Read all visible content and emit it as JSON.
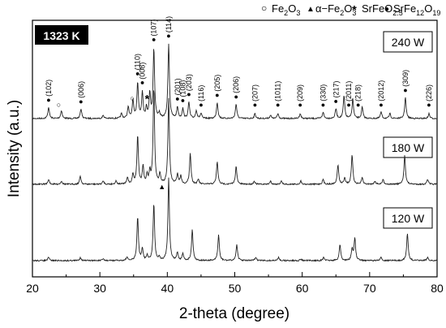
{
  "chart_data": {
    "type": "line",
    "title": "",
    "temperature_label": "1323 K",
    "xlabel": "2-theta (degree)",
    "ylabel": "Intensity (a.u.)",
    "xlim": [
      20,
      80
    ],
    "x_ticks": [
      "20",
      "30",
      "40",
      "50",
      "60",
      "70",
      "80"
    ],
    "grid": false,
    "legend": {
      "placement": "top",
      "items": [
        {
          "marker": "○",
          "symbol_name": "open-circle",
          "base": "Fe",
          "sub1": "2",
          "mid": "O",
          "sub2": "3"
        },
        {
          "marker": "▲",
          "symbol_name": "filled-triangle",
          "base": "α−Fe",
          "sub1": "2",
          "mid": "O",
          "sub2": "3"
        },
        {
          "marker": "*",
          "symbol_name": "asterisk",
          "base": "SrFeO",
          "sub1": "2.5",
          "mid": "",
          "sub2": ""
        },
        {
          "marker": "●",
          "symbol_name": "filled-circle",
          "base": "SrFe",
          "sub1": "12",
          "mid": "O",
          "sub2": "19"
        }
      ]
    },
    "series": [
      {
        "name": "240 W",
        "baseline": 0.0,
        "peaks": [
          [
            22.4,
            0.07
          ],
          [
            24.3,
            0.05
          ],
          [
            27.2,
            0.06
          ],
          [
            30.5,
            0.02
          ],
          [
            33.2,
            0.03
          ],
          [
            34.2,
            0.07
          ],
          [
            34.9,
            0.11
          ],
          [
            35.6,
            0.22
          ],
          [
            36.3,
            0.16
          ],
          [
            36.9,
            0.06
          ],
          [
            37.4,
            0.15
          ],
          [
            38.0,
            0.43
          ],
          [
            38.8,
            0.03
          ],
          [
            40.2,
            0.46
          ],
          [
            41.5,
            0.07
          ],
          [
            42.3,
            0.06
          ],
          [
            43.2,
            0.1
          ],
          [
            44.3,
            0.05
          ],
          [
            45.0,
            0.03
          ],
          [
            47.4,
            0.1
          ],
          [
            50.2,
            0.09
          ],
          [
            53.0,
            0.03
          ],
          [
            55.3,
            0.02
          ],
          [
            56.4,
            0.03
          ],
          [
            59.7,
            0.03
          ],
          [
            63.1,
            0.04
          ],
          [
            65.0,
            0.06
          ],
          [
            66.2,
            0.14
          ],
          [
            67.5,
            0.12
          ],
          [
            68.9,
            0.07
          ],
          [
            71.7,
            0.04
          ],
          [
            73.0,
            0.03
          ],
          [
            75.3,
            0.13
          ],
          [
            78.8,
            0.03
          ]
        ]
      },
      {
        "name": "180 W",
        "baseline": 0.0,
        "peaks": [
          [
            22.4,
            0.03
          ],
          [
            24.3,
            0.02
          ],
          [
            27.1,
            0.05
          ],
          [
            30.5,
            0.02
          ],
          [
            32.4,
            0.02
          ],
          [
            34.1,
            0.04
          ],
          [
            34.9,
            0.06
          ],
          [
            35.6,
            0.3
          ],
          [
            36.4,
            0.11
          ],
          [
            37.0,
            0.05
          ],
          [
            37.4,
            0.07
          ],
          [
            38.0,
            0.59
          ],
          [
            38.9,
            0.06
          ],
          [
            40.2,
            0.53
          ],
          [
            41.5,
            0.06
          ],
          [
            42.0,
            0.05
          ],
          [
            43.4,
            0.19
          ],
          [
            44.6,
            0.03
          ],
          [
            47.4,
            0.14
          ],
          [
            50.2,
            0.11
          ],
          [
            52.9,
            0.02
          ],
          [
            55.3,
            0.02
          ],
          [
            56.9,
            0.02
          ],
          [
            59.8,
            0.02
          ],
          [
            63.1,
            0.03
          ],
          [
            65.3,
            0.12
          ],
          [
            66.3,
            0.04
          ],
          [
            67.4,
            0.18
          ],
          [
            68.9,
            0.04
          ],
          [
            70.8,
            0.02
          ],
          [
            72.0,
            0.03
          ],
          [
            75.2,
            0.18
          ],
          [
            78.6,
            0.03
          ]
        ]
      },
      {
        "name": "120 W",
        "baseline": 0.0,
        "peaks": [
          [
            22.4,
            0.02
          ],
          [
            27.1,
            0.02
          ],
          [
            30.5,
            0.01
          ],
          [
            34.0,
            0.02
          ],
          [
            35.6,
            0.27
          ],
          [
            36.3,
            0.07
          ],
          [
            37.0,
            0.03
          ],
          [
            38.0,
            0.35
          ],
          [
            38.8,
            0.02
          ],
          [
            40.2,
            0.51
          ],
          [
            41.5,
            0.05
          ],
          [
            42.3,
            0.04
          ],
          [
            43.7,
            0.19
          ],
          [
            47.6,
            0.16
          ],
          [
            50.3,
            0.1
          ],
          [
            53.1,
            0.02
          ],
          [
            56.5,
            0.02
          ],
          [
            59.8,
            0.01
          ],
          [
            63.2,
            0.02
          ],
          [
            65.6,
            0.1
          ],
          [
            67.4,
            0.07
          ],
          [
            67.8,
            0.14
          ],
          [
            71.7,
            0.02
          ],
          [
            75.6,
            0.17
          ],
          [
            78.6,
            0.02
          ]
        ]
      }
    ],
    "annotations": [
      {
        "label": "(102)",
        "x": 22.4,
        "marker": "●"
      },
      {
        "label": "(006)",
        "x": 27.2,
        "marker": "●"
      },
      {
        "label": "",
        "x": 23.9,
        "marker": "○"
      },
      {
        "label": "",
        "x": 34.8,
        "marker": "○"
      },
      {
        "label": "(110)",
        "x": 35.6,
        "marker": "●"
      },
      {
        "label": "(008)",
        "x": 36.3,
        "marker": "●"
      },
      {
        "label": "",
        "x": 37.0,
        "marker": "*"
      },
      {
        "label": "(107)",
        "x": 38.0,
        "marker": "●"
      },
      {
        "label": "(114)",
        "x": 40.2,
        "marker": "●"
      },
      {
        "label": "(201)",
        "x": 41.5,
        "marker": "●"
      },
      {
        "label": "(108)",
        "x": 42.3,
        "marker": "●"
      },
      {
        "label": "(203)",
        "x": 43.2,
        "marker": "●"
      },
      {
        "label": "(116)",
        "x": 45.0,
        "marker": "●"
      },
      {
        "label": "(205)",
        "x": 47.4,
        "marker": "●"
      },
      {
        "label": "(206)",
        "x": 50.2,
        "marker": "●"
      },
      {
        "label": "(207)",
        "x": 53.0,
        "marker": "●"
      },
      {
        "label": "(1011)",
        "x": 56.4,
        "marker": "●"
      },
      {
        "label": "(209)",
        "x": 59.7,
        "marker": "●"
      },
      {
        "label": "(330)",
        "x": 63.1,
        "marker": "●"
      },
      {
        "label": "(217)",
        "x": 65.0,
        "marker": "●"
      },
      {
        "label": "(2011)",
        "x": 66.9,
        "marker": "●"
      },
      {
        "label": "(218)",
        "x": 68.3,
        "marker": "●"
      },
      {
        "label": "(2012)",
        "x": 71.7,
        "marker": "●"
      },
      {
        "label": "(309)",
        "x": 75.3,
        "marker": "●"
      },
      {
        "label": "(226)",
        "x": 78.8,
        "marker": "●"
      },
      {
        "label": "",
        "x": 39.2,
        "marker": "▲"
      }
    ]
  }
}
